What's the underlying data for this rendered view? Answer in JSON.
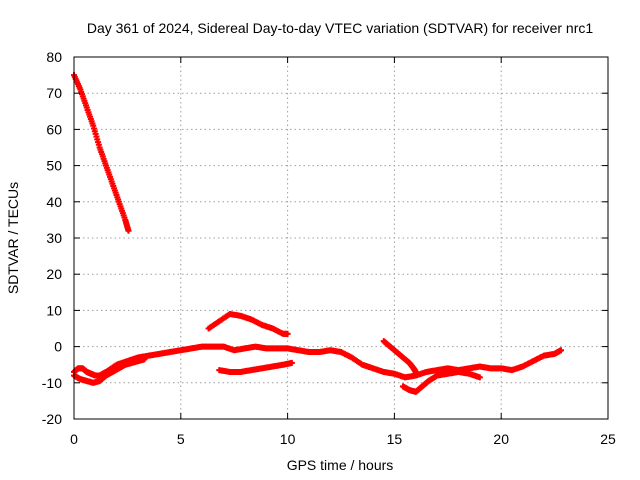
{
  "chart_data": {
    "type": "scatter",
    "title": "Day 361 of 2024, Sidereal Day-to-day VTEC variation (SDTVAR) for receiver nrc1",
    "xlabel": "GPS time / hours",
    "ylabel": "SDTVAR / TECUs",
    "xlim": [
      0,
      25
    ],
    "ylim": [
      -20,
      80
    ],
    "xticks": [
      0,
      5,
      10,
      15,
      20,
      25
    ],
    "yticks": [
      -20,
      -10,
      0,
      10,
      20,
      30,
      40,
      50,
      60,
      70,
      80
    ],
    "grid": true,
    "marker_color": "#ff0000",
    "series": [
      {
        "name": "segment-early-high",
        "points": [
          [
            0.0,
            75
          ],
          [
            0.3,
            71
          ],
          [
            0.6,
            66
          ],
          [
            0.9,
            61
          ],
          [
            1.2,
            55
          ],
          [
            1.5,
            50
          ],
          [
            1.8,
            45
          ],
          [
            2.1,
            40
          ],
          [
            2.4,
            35
          ],
          [
            2.55,
            32
          ]
        ]
      },
      {
        "name": "segment-main",
        "points": [
          [
            0.0,
            -7
          ],
          [
            0.2,
            -6
          ],
          [
            0.4,
            -6
          ],
          [
            0.6,
            -7
          ],
          [
            0.8,
            -7.5
          ],
          [
            1.0,
            -8
          ],
          [
            1.2,
            -8
          ],
          [
            1.5,
            -7
          ],
          [
            2.0,
            -5
          ],
          [
            2.5,
            -4
          ],
          [
            3.0,
            -3
          ],
          [
            3.5,
            -2.5
          ],
          [
            4.0,
            -2
          ],
          [
            4.5,
            -1.5
          ],
          [
            5.0,
            -1
          ],
          [
            5.5,
            -0.5
          ],
          [
            6.0,
            0
          ],
          [
            6.5,
            0
          ],
          [
            7.0,
            0
          ],
          [
            7.5,
            -1
          ],
          [
            8.0,
            -0.5
          ],
          [
            8.5,
            0
          ],
          [
            9.0,
            -0.5
          ],
          [
            9.5,
            -0.5
          ],
          [
            10.0,
            -0.5
          ],
          [
            10.5,
            -1
          ],
          [
            11.0,
            -1.5
          ],
          [
            11.5,
            -1.5
          ],
          [
            12.0,
            -1
          ],
          [
            12.5,
            -1.5
          ],
          [
            13.0,
            -3
          ],
          [
            13.5,
            -5
          ],
          [
            14.0,
            -6
          ],
          [
            14.5,
            -7
          ],
          [
            15.0,
            -7.5
          ],
          [
            15.5,
            -8.5
          ],
          [
            16.0,
            -8
          ],
          [
            16.5,
            -7
          ],
          [
            17.0,
            -6.5
          ],
          [
            17.5,
            -6
          ],
          [
            18.0,
            -6.5
          ],
          [
            18.5,
            -6
          ],
          [
            19.0,
            -5.5
          ],
          [
            19.5,
            -6
          ],
          [
            20.0,
            -6
          ],
          [
            20.5,
            -6.5
          ],
          [
            21.0,
            -5.5
          ],
          [
            21.5,
            -4
          ],
          [
            22.0,
            -2.5
          ],
          [
            22.5,
            -2
          ],
          [
            22.8,
            -1
          ]
        ]
      },
      {
        "name": "segment-early-low",
        "points": [
          [
            0.0,
            -8
          ],
          [
            0.3,
            -9
          ],
          [
            0.6,
            -9.5
          ],
          [
            0.9,
            -10
          ],
          [
            1.2,
            -9.5
          ],
          [
            1.5,
            -8
          ],
          [
            1.8,
            -7
          ],
          [
            2.1,
            -6
          ],
          [
            2.4,
            -5
          ],
          [
            2.7,
            -4.5
          ],
          [
            3.0,
            -4
          ],
          [
            3.3,
            -3.5
          ]
        ]
      },
      {
        "name": "segment-hump",
        "points": [
          [
            6.3,
            5
          ],
          [
            6.8,
            7
          ],
          [
            7.3,
            9
          ],
          [
            7.8,
            8.5
          ],
          [
            8.3,
            7.5
          ],
          [
            8.8,
            6
          ],
          [
            9.3,
            5
          ],
          [
            9.8,
            3.5
          ],
          [
            10.0,
            3.5
          ]
        ]
      },
      {
        "name": "segment-lower-track",
        "points": [
          [
            6.8,
            -6.5
          ],
          [
            7.3,
            -7
          ],
          [
            7.8,
            -7
          ],
          [
            8.3,
            -6.5
          ],
          [
            8.8,
            -6
          ],
          [
            9.3,
            -5.5
          ],
          [
            9.8,
            -5
          ],
          [
            10.2,
            -4.5
          ]
        ]
      },
      {
        "name": "segment-dip",
        "points": [
          [
            14.5,
            1.5
          ],
          [
            14.8,
            0
          ],
          [
            15.1,
            -1.5
          ],
          [
            15.4,
            -3
          ],
          [
            15.7,
            -4.5
          ],
          [
            15.9,
            -6
          ],
          [
            16.0,
            -7
          ]
        ]
      },
      {
        "name": "segment-dip-low",
        "points": [
          [
            15.4,
            -11
          ],
          [
            15.7,
            -12
          ],
          [
            16.0,
            -12.5
          ],
          [
            16.3,
            -11
          ],
          [
            16.6,
            -9.5
          ],
          [
            17.0,
            -8
          ],
          [
            17.5,
            -7.5
          ],
          [
            18.0,
            -7
          ],
          [
            18.5,
            -7.5
          ],
          [
            19.0,
            -8.5
          ]
        ]
      }
    ]
  }
}
